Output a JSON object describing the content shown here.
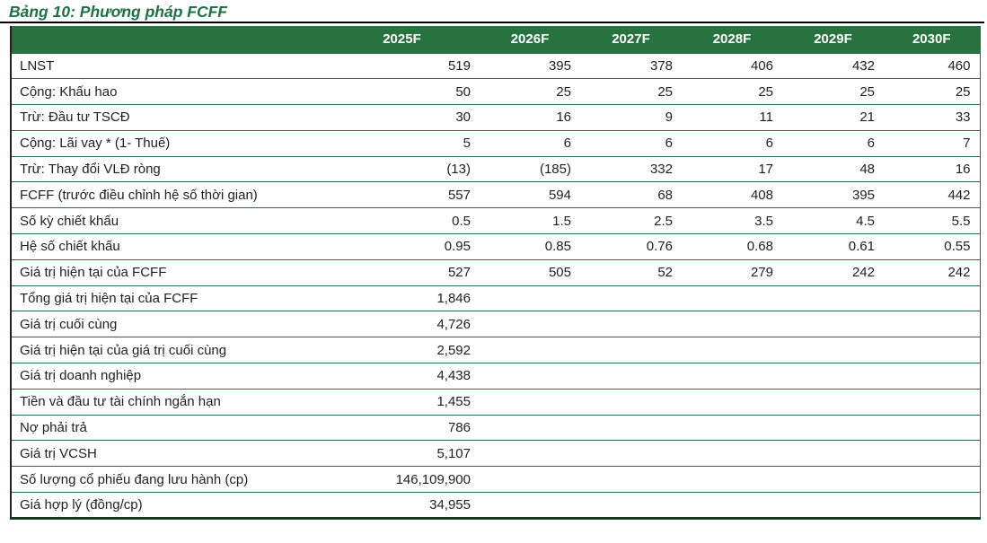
{
  "title": "Bảng 10: Phương pháp FCFF",
  "colors": {
    "header_bg": "#27723E",
    "title_green": "#1F7145",
    "row_border": "#2E6B41",
    "outer_dark": "#16391F",
    "text": "#1F1F1F",
    "header_text": "#FFFFFF"
  },
  "chart_data": {
    "type": "table",
    "title": "Bảng 10: Phương pháp FCFF",
    "columns": [
      "",
      "2025F",
      "2026F",
      "2027F",
      "2028F",
      "2029F",
      "2030F"
    ],
    "rows": [
      {
        "label": "LNST",
        "values": [
          "519",
          "395",
          "378",
          "406",
          "432",
          "460"
        ]
      },
      {
        "label": "Cộng: Khấu hao",
        "values": [
          "50",
          "25",
          "25",
          "25",
          "25",
          "25"
        ]
      },
      {
        "label": "Trừ: Đầu tư TSCĐ",
        "values": [
          "30",
          "16",
          "9",
          "11",
          "21",
          "33"
        ]
      },
      {
        "label": "Cộng: Lãi vay * (1- Thuế)",
        "values": [
          "5",
          "6",
          "6",
          "6",
          "6",
          "7"
        ]
      },
      {
        "label": "Trừ: Thay đổi VLĐ ròng",
        "values": [
          "(13)",
          "(185)",
          "332",
          "17",
          "48",
          "16"
        ]
      },
      {
        "label": "FCFF (trước điều chỉnh hệ số thời gian)",
        "values": [
          "557",
          "594",
          "68",
          "408",
          "395",
          "442"
        ]
      },
      {
        "label": "Số kỳ chiết khấu",
        "values": [
          "0.5",
          "1.5",
          "2.5",
          "3.5",
          "4.5",
          "5.5"
        ]
      },
      {
        "label": "Hệ số chiết khấu",
        "values": [
          "0.95",
          "0.85",
          "0.76",
          "0.68",
          "0.61",
          "0.55"
        ]
      },
      {
        "label": "Giá trị hiện tại của FCFF",
        "values": [
          "527",
          "505",
          "52",
          "279",
          "242",
          "242"
        ]
      },
      {
        "label": "Tổng giá trị hiện tại của FCFF",
        "values": [
          "1,846",
          "",
          "",
          "",
          "",
          ""
        ]
      },
      {
        "label": "Giá trị cuối cùng",
        "values": [
          "4,726",
          "",
          "",
          "",
          "",
          ""
        ]
      },
      {
        "label": "Giá trị hiện tại của giá trị cuối cùng",
        "values": [
          "2,592",
          "",
          "",
          "",
          "",
          ""
        ]
      },
      {
        "label": "Giá trị doanh nghiệp",
        "values": [
          "4,438",
          "",
          "",
          "",
          "",
          ""
        ]
      },
      {
        "label": "Tiền và đầu tư tài chính ngắn hạn",
        "values": [
          "1,455",
          "",
          "",
          "",
          "",
          ""
        ]
      },
      {
        "label": "Nợ phải trả",
        "values": [
          "786",
          "",
          "",
          "",
          "",
          ""
        ]
      },
      {
        "label": "Giá trị VCSH",
        "values": [
          "5,107",
          "",
          "",
          "",
          "",
          ""
        ]
      },
      {
        "label": "Số lượng cổ phiếu đang lưu hành (cp)",
        "values": [
          "146,109,900",
          "",
          "",
          "",
          "",
          ""
        ]
      },
      {
        "label": "Giá hợp lý (đồng/cp)",
        "values": [
          "34,955",
          "",
          "",
          "",
          "",
          ""
        ]
      }
    ]
  }
}
